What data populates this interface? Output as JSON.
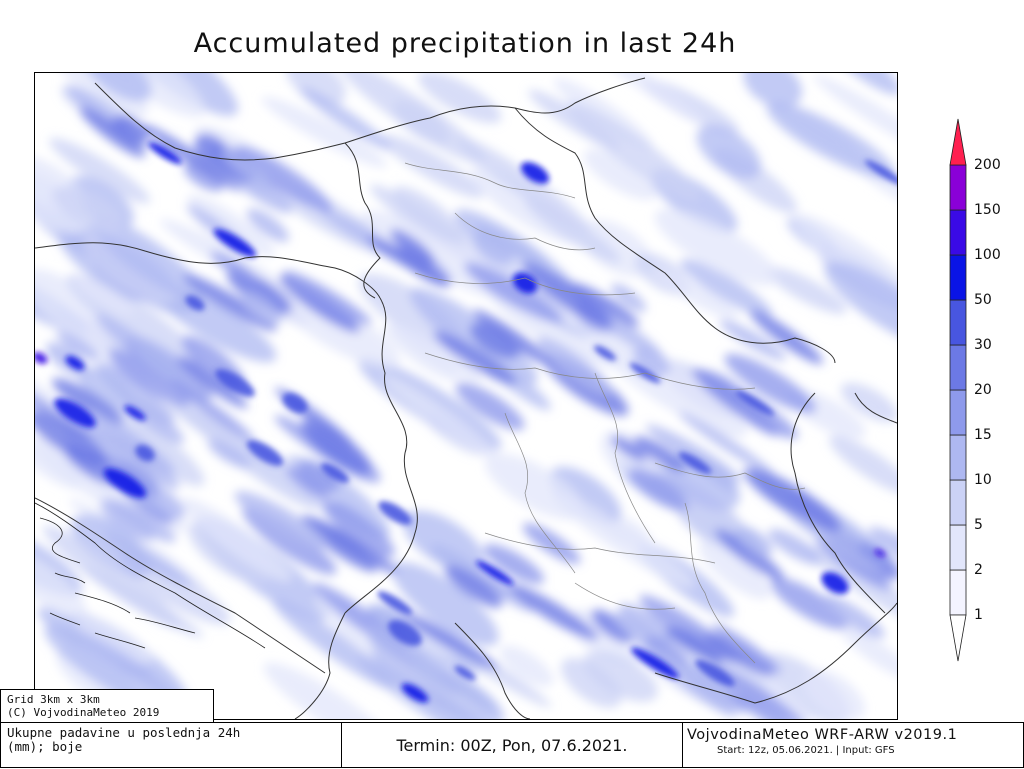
{
  "title": "Accumulated precipitation in last 24h",
  "legend": {
    "levels": [
      "1",
      "2",
      "5",
      "10",
      "15",
      "20",
      "30",
      "50",
      "100",
      "150",
      "200"
    ],
    "colors": [
      "#f4f4ff",
      "#e2e6fb",
      "#cbd2f6",
      "#aeb8f1",
      "#8e9aec",
      "#6c79e5",
      "#4856e0",
      "#0a14e6",
      "#3a0ae6",
      "#8a00d8",
      "#ff2050"
    ]
  },
  "footer": {
    "grid_line1": "Grid 3km x 3km",
    "grid_line2": "(C) VojvodinaMeteo 2019",
    "description_line1": "Ukupne padavine u poslednja 24h",
    "description_line2": "(mm); boje",
    "termin": "Termin: 00Z, Pon, 07.6.2021.",
    "model_name": "VojvodinaMeteo WRF-ARW v2019.1",
    "model_run": "Start: 12z, 05.06.2021. | Input: GFS"
  }
}
